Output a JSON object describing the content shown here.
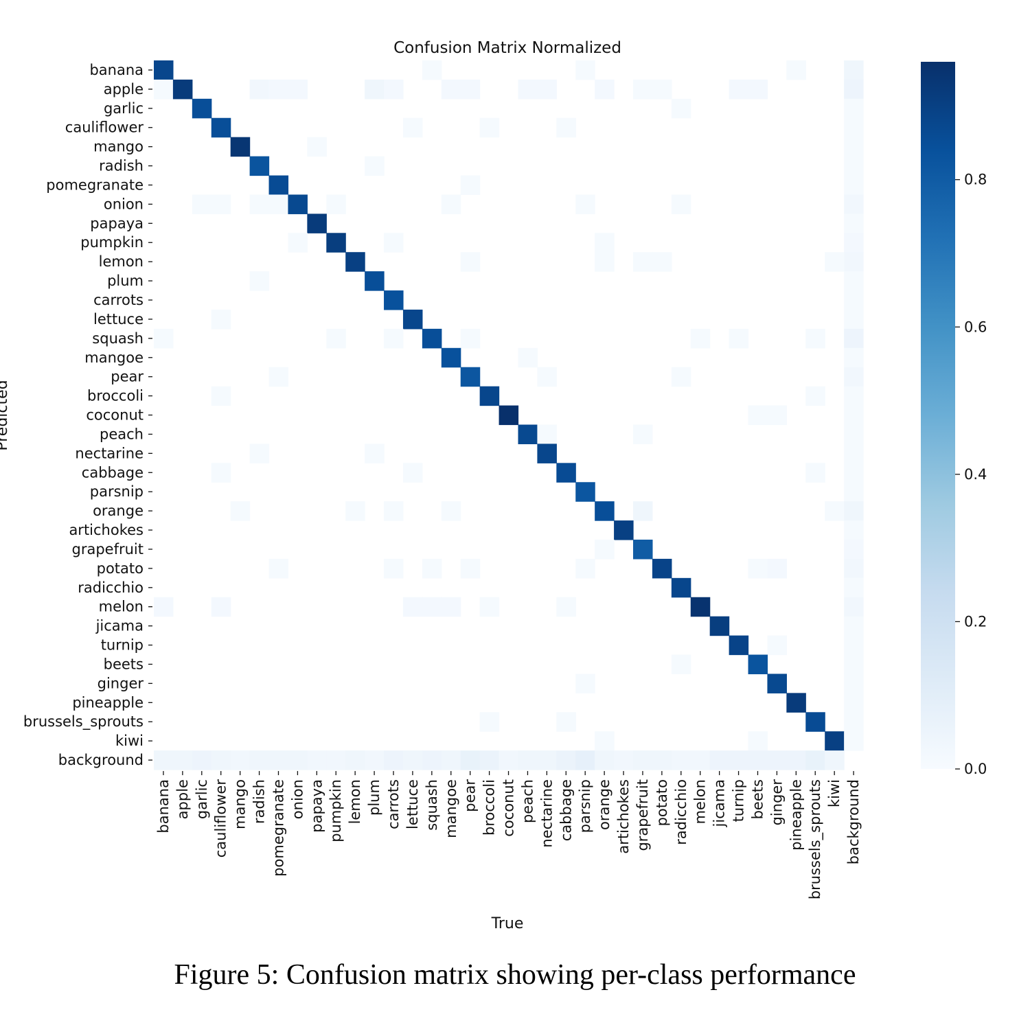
{
  "chart_data": {
    "type": "heatmap",
    "title": "Confusion Matrix Normalized",
    "xlabel": "True",
    "ylabel": "Predicted",
    "labels": [
      "banana",
      "apple",
      "garlic",
      "cauliflower",
      "mango",
      "radish",
      "pomegranate",
      "onion",
      "papaya",
      "pumpkin",
      "lemon",
      "plum",
      "carrots",
      "lettuce",
      "squash",
      "mangoe",
      "pear",
      "broccoli",
      "coconut",
      "peach",
      "nectarine",
      "cabbage",
      "parsnip",
      "orange",
      "artichokes",
      "grapefruit",
      "potato",
      "radicchio",
      "melon",
      "jicama",
      "turnip",
      "beets",
      "ginger",
      "pineapple",
      "brussels_sprouts",
      "kiwi",
      "background"
    ],
    "colorbar": {
      "range": [
        0,
        0.96
      ],
      "ticks": [
        0.0,
        0.2,
        0.4,
        0.6,
        0.8
      ],
      "tick_labels": [
        "0.0",
        "0.2",
        "0.4",
        "0.6",
        "0.8"
      ]
    },
    "colormap": "Blues",
    "diagonal": [
      0.88,
      0.92,
      0.85,
      0.85,
      0.94,
      0.83,
      0.86,
      0.87,
      0.92,
      0.91,
      0.9,
      0.85,
      0.84,
      0.88,
      0.85,
      0.84,
      0.82,
      0.88,
      0.96,
      0.87,
      0.88,
      0.86,
      0.82,
      0.85,
      0.9,
      0.8,
      0.89,
      0.88,
      0.95,
      0.91,
      0.89,
      0.83,
      0.87,
      0.92,
      0.86,
      0.9,
      0
    ],
    "off_diagonal": [
      [
        0,
        14,
        0.01
      ],
      [
        0,
        22,
        0.01
      ],
      [
        0,
        33,
        0.01
      ],
      [
        0,
        36,
        0.04
      ],
      [
        1,
        0,
        0.01
      ],
      [
        1,
        5,
        0.03
      ],
      [
        1,
        6,
        0.02
      ],
      [
        1,
        7,
        0.02
      ],
      [
        1,
        11,
        0.04
      ],
      [
        1,
        12,
        0.02
      ],
      [
        1,
        15,
        0.02
      ],
      [
        1,
        16,
        0.02
      ],
      [
        1,
        19,
        0.02
      ],
      [
        1,
        20,
        0.02
      ],
      [
        1,
        23,
        0.02
      ],
      [
        1,
        25,
        0.01
      ],
      [
        1,
        26,
        0.01
      ],
      [
        1,
        30,
        0.02
      ],
      [
        1,
        31,
        0.02
      ],
      [
        1,
        36,
        0.05
      ],
      [
        2,
        27,
        0.01
      ],
      [
        2,
        36,
        0.01
      ],
      [
        3,
        13,
        0.01
      ],
      [
        3,
        17,
        0.01
      ],
      [
        3,
        21,
        0.01
      ],
      [
        3,
        36,
        0.01
      ],
      [
        4,
        8,
        0.01
      ],
      [
        4,
        36,
        0.01
      ],
      [
        5,
        11,
        0.01
      ],
      [
        5,
        36,
        0.01
      ],
      [
        6,
        16,
        0.01
      ],
      [
        6,
        36,
        0.01
      ],
      [
        7,
        2,
        0.01
      ],
      [
        7,
        3,
        0.01
      ],
      [
        7,
        5,
        0.01
      ],
      [
        7,
        6,
        0.01
      ],
      [
        7,
        9,
        0.01
      ],
      [
        7,
        15,
        0.01
      ],
      [
        7,
        22,
        0.01
      ],
      [
        7,
        27,
        0.01
      ],
      [
        7,
        36,
        0.03
      ],
      [
        8,
        36,
        0.01
      ],
      [
        9,
        7,
        0.01
      ],
      [
        9,
        12,
        0.01
      ],
      [
        9,
        23,
        0.01
      ],
      [
        9,
        36,
        0.02
      ],
      [
        10,
        16,
        0.01
      ],
      [
        10,
        23,
        0.01
      ],
      [
        10,
        25,
        0.01
      ],
      [
        10,
        26,
        0.01
      ],
      [
        10,
        35,
        0.01
      ],
      [
        10,
        36,
        0.03
      ],
      [
        11,
        5,
        0.01
      ],
      [
        11,
        36,
        0.01
      ],
      [
        12,
        36,
        0.01
      ],
      [
        13,
        3,
        0.01
      ],
      [
        13,
        36,
        0.01
      ],
      [
        14,
        0,
        0.01
      ],
      [
        14,
        9,
        0.01
      ],
      [
        14,
        12,
        0.01
      ],
      [
        14,
        16,
        0.01
      ],
      [
        14,
        28,
        0.01
      ],
      [
        14,
        30,
        0.01
      ],
      [
        14,
        34,
        0.01
      ],
      [
        14,
        36,
        0.05
      ],
      [
        15,
        19,
        0.01
      ],
      [
        15,
        36,
        0.01
      ],
      [
        16,
        6,
        0.01
      ],
      [
        16,
        20,
        0.01
      ],
      [
        16,
        27,
        0.01
      ],
      [
        16,
        36,
        0.03
      ],
      [
        17,
        3,
        0.01
      ],
      [
        17,
        34,
        0.01
      ],
      [
        17,
        36,
        0.01
      ],
      [
        18,
        31,
        0.01
      ],
      [
        18,
        32,
        0.01
      ],
      [
        18,
        36,
        0.01
      ],
      [
        19,
        20,
        0.01
      ],
      [
        19,
        25,
        0.01
      ],
      [
        19,
        36,
        0.01
      ],
      [
        20,
        5,
        0.01
      ],
      [
        20,
        11,
        0.01
      ],
      [
        20,
        36,
        0.01
      ],
      [
        21,
        3,
        0.01
      ],
      [
        21,
        13,
        0.01
      ],
      [
        21,
        34,
        0.01
      ],
      [
        21,
        36,
        0.01
      ],
      [
        22,
        36,
        0.01
      ],
      [
        23,
        4,
        0.01
      ],
      [
        23,
        10,
        0.01
      ],
      [
        23,
        12,
        0.01
      ],
      [
        23,
        15,
        0.01
      ],
      [
        23,
        25,
        0.04
      ],
      [
        23,
        35,
        0.01
      ],
      [
        23,
        36,
        0.04
      ],
      [
        24,
        36,
        0.01
      ],
      [
        25,
        23,
        0.01
      ],
      [
        25,
        36,
        0.02
      ],
      [
        26,
        6,
        0.01
      ],
      [
        26,
        12,
        0.01
      ],
      [
        26,
        14,
        0.01
      ],
      [
        26,
        16,
        0.01
      ],
      [
        26,
        22,
        0.01
      ],
      [
        26,
        31,
        0.01
      ],
      [
        26,
        32,
        0.02
      ],
      [
        26,
        36,
        0.03
      ],
      [
        27,
        36,
        0.01
      ],
      [
        28,
        0,
        0.02
      ],
      [
        28,
        3,
        0.02
      ],
      [
        28,
        13,
        0.02
      ],
      [
        28,
        14,
        0.02
      ],
      [
        28,
        15,
        0.02
      ],
      [
        28,
        17,
        0.01
      ],
      [
        28,
        21,
        0.01
      ],
      [
        28,
        36,
        0.03
      ],
      [
        29,
        36,
        0.01
      ],
      [
        30,
        32,
        0.01
      ],
      [
        30,
        36,
        0.01
      ],
      [
        31,
        27,
        0.01
      ],
      [
        31,
        36,
        0.01
      ],
      [
        32,
        22,
        0.01
      ],
      [
        32,
        36,
        0.01
      ],
      [
        33,
        36,
        0.01
      ],
      [
        34,
        17,
        0.01
      ],
      [
        34,
        21,
        0.01
      ],
      [
        34,
        36,
        0.01
      ],
      [
        35,
        23,
        0.01
      ],
      [
        35,
        31,
        0.01
      ],
      [
        35,
        36,
        0.01
      ],
      [
        36,
        0,
        0.04
      ],
      [
        36,
        1,
        0.04
      ],
      [
        36,
        2,
        0.05
      ],
      [
        36,
        3,
        0.04
      ],
      [
        36,
        4,
        0.03
      ],
      [
        36,
        5,
        0.04
      ],
      [
        36,
        6,
        0.04
      ],
      [
        36,
        7,
        0.04
      ],
      [
        36,
        8,
        0.03
      ],
      [
        36,
        9,
        0.03
      ],
      [
        36,
        10,
        0.04
      ],
      [
        36,
        11,
        0.03
      ],
      [
        36,
        12,
        0.05
      ],
      [
        36,
        13,
        0.04
      ],
      [
        36,
        14,
        0.05
      ],
      [
        36,
        15,
        0.04
      ],
      [
        36,
        16,
        0.07
      ],
      [
        36,
        17,
        0.06
      ],
      [
        36,
        18,
        0.03
      ],
      [
        36,
        19,
        0.04
      ],
      [
        36,
        20,
        0.04
      ],
      [
        36,
        21,
        0.06
      ],
      [
        36,
        22,
        0.08
      ],
      [
        36,
        23,
        0.04
      ],
      [
        36,
        24,
        0.03
      ],
      [
        36,
        25,
        0.04
      ],
      [
        36,
        26,
        0.04
      ],
      [
        36,
        27,
        0.03
      ],
      [
        36,
        28,
        0.03
      ],
      [
        36,
        29,
        0.05
      ],
      [
        36,
        30,
        0.05
      ],
      [
        36,
        31,
        0.05
      ],
      [
        36,
        32,
        0.05
      ],
      [
        36,
        33,
        0.05
      ],
      [
        36,
        34,
        0.07
      ],
      [
        36,
        35,
        0.04
      ]
    ]
  },
  "caption": "Figure 5: Confusion matrix showing per-class performance"
}
